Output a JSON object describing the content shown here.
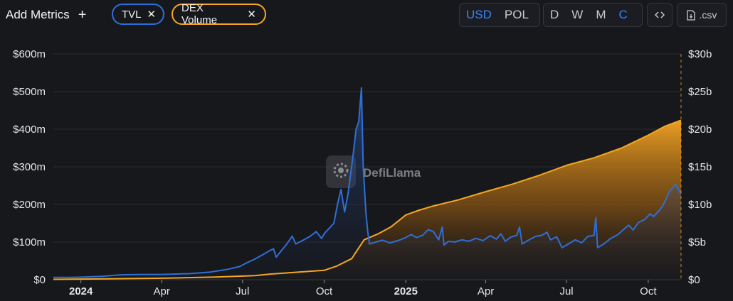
{
  "toolbar": {
    "add_metrics_label": "Add Metrics",
    "chips": [
      {
        "label": "TVL",
        "color": "#2a6fdb"
      },
      {
        "label": "DEX Volume",
        "color": "#f5a623"
      }
    ],
    "currency": {
      "options": [
        "USD",
        "POL"
      ],
      "selected": "USD"
    },
    "periods": {
      "options": [
        "D",
        "W",
        "M",
        "C"
      ],
      "selected": "C"
    },
    "embed_icon": "code-icon",
    "csv_label": ".csv",
    "csv_icon": "file-download-icon"
  },
  "watermark": "DefiLlama",
  "chart_data": {
    "type": "line",
    "x_range": [
      "2023-12-01",
      "2025-11-07"
    ],
    "x_ticks": [
      {
        "date": "2024-01-01",
        "label": "2024",
        "bold": true
      },
      {
        "date": "2024-04-01",
        "label": "Apr",
        "bold": false
      },
      {
        "date": "2024-07-01",
        "label": "Jul",
        "bold": false
      },
      {
        "date": "2024-10-01",
        "label": "Oct",
        "bold": false
      },
      {
        "date": "2025-01-01",
        "label": "2025",
        "bold": true
      },
      {
        "date": "2025-04-01",
        "label": "Apr",
        "bold": false
      },
      {
        "date": "2025-07-01",
        "label": "Jul",
        "bold": false
      },
      {
        "date": "2025-10-01",
        "label": "Oct",
        "bold": false
      }
    ],
    "y_left": {
      "range": [
        0,
        600
      ],
      "ticks": [
        0,
        100,
        200,
        300,
        400,
        500,
        600
      ],
      "labels": [
        "$0",
        "$100m",
        "$200m",
        "$300m",
        "$400m",
        "$500m",
        "$600m"
      ]
    },
    "y_right": {
      "range": [
        0,
        30
      ],
      "ticks": [
        0,
        5,
        10,
        15,
        20,
        25,
        30
      ],
      "labels": [
        "$0",
        "$5b",
        "$10b",
        "$15b",
        "$20b",
        "$25b",
        "$30b"
      ]
    },
    "grid": true,
    "series": [
      {
        "name": "TVL",
        "axis": "left",
        "unit": "millions USD",
        "color": "#2f6fd6",
        "style": "line-with-fill",
        "points": [
          [
            "2023-12-01",
            6
          ],
          [
            "2023-12-20",
            6
          ],
          [
            "2024-01-05",
            7
          ],
          [
            "2024-01-25",
            9
          ],
          [
            "2024-02-15",
            13
          ],
          [
            "2024-03-10",
            14
          ],
          [
            "2024-04-01",
            14
          ],
          [
            "2024-05-01",
            16
          ],
          [
            "2024-05-25",
            20
          ],
          [
            "2024-06-15",
            28
          ],
          [
            "2024-06-28",
            35
          ],
          [
            "2024-07-05",
            44
          ],
          [
            "2024-07-15",
            55
          ],
          [
            "2024-07-25",
            68
          ],
          [
            "2024-08-01",
            78
          ],
          [
            "2024-08-05",
            82
          ],
          [
            "2024-08-08",
            60
          ],
          [
            "2024-08-14",
            78
          ],
          [
            "2024-08-20",
            95
          ],
          [
            "2024-08-26",
            116
          ],
          [
            "2024-08-30",
            95
          ],
          [
            "2024-09-05",
            102
          ],
          [
            "2024-09-15",
            115
          ],
          [
            "2024-09-22",
            128
          ],
          [
            "2024-09-28",
            110
          ],
          [
            "2024-10-02",
            125
          ],
          [
            "2024-10-08",
            140
          ],
          [
            "2024-10-12",
            150
          ],
          [
            "2024-10-16",
            200
          ],
          [
            "2024-10-20",
            240
          ],
          [
            "2024-10-24",
            180
          ],
          [
            "2024-10-28",
            230
          ],
          [
            "2024-11-02",
            320
          ],
          [
            "2024-11-06",
            400
          ],
          [
            "2024-11-09",
            420
          ],
          [
            "2024-11-12",
            510
          ],
          [
            "2024-11-14",
            300
          ],
          [
            "2024-11-17",
            180
          ],
          [
            "2024-11-19",
            130
          ],
          [
            "2024-11-21",
            95
          ],
          [
            "2024-11-28",
            100
          ],
          [
            "2024-12-06",
            105
          ],
          [
            "2024-12-14",
            98
          ],
          [
            "2024-12-22",
            103
          ],
          [
            "2024-12-30",
            110
          ],
          [
            "2025-01-07",
            120
          ],
          [
            "2025-01-13",
            112
          ],
          [
            "2025-01-20",
            118
          ],
          [
            "2025-01-26",
            133
          ],
          [
            "2025-02-01",
            128
          ],
          [
            "2025-02-07",
            106
          ],
          [
            "2025-02-11",
            140
          ],
          [
            "2025-02-13",
            92
          ],
          [
            "2025-02-18",
            102
          ],
          [
            "2025-02-25",
            100
          ],
          [
            "2025-03-05",
            106
          ],
          [
            "2025-03-13",
            102
          ],
          [
            "2025-03-21",
            110
          ],
          [
            "2025-03-29",
            104
          ],
          [
            "2025-04-06",
            117
          ],
          [
            "2025-04-13",
            108
          ],
          [
            "2025-04-18",
            122
          ],
          [
            "2025-04-23",
            102
          ],
          [
            "2025-04-29",
            113
          ],
          [
            "2025-05-06",
            118
          ],
          [
            "2025-05-09",
            140
          ],
          [
            "2025-05-12",
            95
          ],
          [
            "2025-05-19",
            105
          ],
          [
            "2025-05-27",
            115
          ],
          [
            "2025-06-03",
            118
          ],
          [
            "2025-06-09",
            126
          ],
          [
            "2025-06-13",
            106
          ],
          [
            "2025-06-20",
            114
          ],
          [
            "2025-06-26",
            85
          ],
          [
            "2025-07-03",
            95
          ],
          [
            "2025-07-11",
            106
          ],
          [
            "2025-07-18",
            98
          ],
          [
            "2025-07-25",
            115
          ],
          [
            "2025-08-01",
            118
          ],
          [
            "2025-08-03",
            165
          ],
          [
            "2025-08-05",
            85
          ],
          [
            "2025-08-12",
            95
          ],
          [
            "2025-08-20",
            110
          ],
          [
            "2025-08-28",
            120
          ],
          [
            "2025-09-04",
            135
          ],
          [
            "2025-09-09",
            145
          ],
          [
            "2025-09-14",
            132
          ],
          [
            "2025-09-20",
            152
          ],
          [
            "2025-09-27",
            160
          ],
          [
            "2025-10-03",
            175
          ],
          [
            "2025-10-07",
            168
          ],
          [
            "2025-10-12",
            180
          ],
          [
            "2025-10-17",
            195
          ],
          [
            "2025-10-22",
            218
          ],
          [
            "2025-10-25",
            235
          ],
          [
            "2025-10-29",
            245
          ],
          [
            "2025-11-01",
            253
          ],
          [
            "2025-11-04",
            240
          ],
          [
            "2025-11-07",
            228
          ]
        ]
      },
      {
        "name": "DEX Volume",
        "axis": "right",
        "unit": "billions USD (cumulative)",
        "color": "#f5a623",
        "style": "line-with-fill",
        "points": [
          [
            "2023-12-01",
            0.05
          ],
          [
            "2024-02-01",
            0.12
          ],
          [
            "2024-04-01",
            0.2
          ],
          [
            "2024-06-01",
            0.35
          ],
          [
            "2024-07-15",
            0.55
          ],
          [
            "2024-08-01",
            0.75
          ],
          [
            "2024-09-01",
            1.0
          ],
          [
            "2024-10-01",
            1.25
          ],
          [
            "2024-10-15",
            1.8
          ],
          [
            "2024-11-01",
            2.8
          ],
          [
            "2024-11-15",
            5.3
          ],
          [
            "2024-12-01",
            6.1
          ],
          [
            "2024-12-15",
            7.0
          ],
          [
            "2025-01-01",
            8.6
          ],
          [
            "2025-01-15",
            9.2
          ],
          [
            "2025-02-01",
            9.8
          ],
          [
            "2025-03-01",
            10.6
          ],
          [
            "2025-04-01",
            11.7
          ],
          [
            "2025-05-01",
            12.7
          ],
          [
            "2025-06-01",
            13.9
          ],
          [
            "2025-07-01",
            15.2
          ],
          [
            "2025-08-01",
            16.2
          ],
          [
            "2025-09-01",
            17.5
          ],
          [
            "2025-10-01",
            19.2
          ],
          [
            "2025-10-20",
            20.4
          ],
          [
            "2025-11-07",
            21.2
          ]
        ]
      }
    ]
  }
}
